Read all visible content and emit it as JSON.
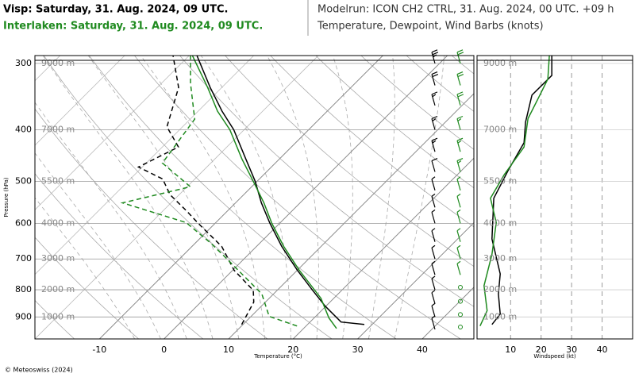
{
  "header": {
    "visp": "Visp: Saturday, 31. Aug. 2024, 09 UTC.",
    "interlaken": "Interlaken: Saturday, 31. Aug. 2024, 09 UTC.",
    "modelrun": "Modelrun: ICON CH2 CTRL, 31. Aug. 2024, 00 UTC. +09 h",
    "subtitle": "Temperature, Dewpoint, Wind Barbs (knots)"
  },
  "footer": "© Meteoswiss (2024)",
  "chart_data": [
    {
      "type": "skewt",
      "xlabel": "Temperature (°C)",
      "ylabel": "Pressure (hPa)",
      "log_y": true,
      "xlim": [
        -20,
        48
      ],
      "ylim": [
        990,
        290
      ],
      "xticks": [
        -10,
        0,
        10,
        20,
        30,
        40
      ],
      "yticks": [
        300,
        400,
        500,
        600,
        700,
        800,
        900
      ],
      "height_labels": [
        "9000 m",
        "7000 m",
        "5500 m",
        "4000 m",
        "3000 m",
        "2000 m",
        "1000 m"
      ],
      "series": [
        {
          "color": "#000000",
          "dash": false,
          "pressure": [
            930,
            920,
            859,
            802,
            735,
            663,
            600,
            549,
            500,
            454,
            400,
            369,
            333,
            290
          ],
          "values": [
            28.8,
            24.8,
            19.9,
            15.5,
            10.0,
            3.9,
            -1.5,
            -6.0,
            -10.3,
            -15.2,
            -21.6,
            -26.3,
            -31.8,
            -38.8
          ]
        },
        {
          "color": "#1f8a1f",
          "dash": false,
          "pressure": [
            946,
            904,
            830,
            735,
            663,
            600,
            549,
            500,
            454,
            400,
            369,
            333,
            290
          ],
          "values": [
            25.1,
            22.3,
            18.0,
            10.3,
            4.2,
            -1.2,
            -5.6,
            -10.6,
            -15.8,
            -22.2,
            -27.0,
            -32.2,
            -39.5
          ]
        },
        {
          "color": "#000000",
          "dash": true,
          "pressure": [
            930,
            844,
            802,
            735,
            663,
            600,
            568,
            530,
            495,
            470,
            431,
            395,
            333,
            290
          ],
          "values": [
            9.8,
            8.2,
            6.3,
            0.2,
            -5.4,
            -12.6,
            -16.4,
            -21.4,
            -25.0,
            -30.6,
            -27.5,
            -32.4,
            -36.7,
            -42.5
          ]
        },
        {
          "color": "#1f8a1f",
          "dash": true,
          "pressure": [
            936,
            898,
            815,
            686,
            652,
            598,
            549,
            512,
            462,
            382,
            327,
            290
          ],
          "values": [
            18.6,
            12.8,
            8.2,
            -4.1,
            -7.8,
            -14.6,
            -27.5,
            -19.5,
            -27.5,
            -29.3,
            -35.5,
            -39.8
          ]
        }
      ],
      "wind_barbs": [
        {
          "color": "#000000",
          "pressure": [
            300,
            330,
            360,
            400,
            440,
            480,
            520,
            560,
            600,
            650,
            700,
            750,
            800,
            850,
            900,
            950
          ],
          "values": [
            23,
            20,
            16,
            15,
            14,
            10,
            6,
            5,
            4,
            4,
            4,
            6,
            7,
            7,
            5,
            4
          ]
        },
        {
          "color": "#1f8a1f",
          "pressure": [
            300,
            330,
            360,
            400,
            440,
            480,
            520,
            560,
            600,
            650,
            700,
            750,
            800,
            850,
            900,
            950
          ],
          "values": [
            22,
            21,
            19,
            16,
            15,
            13,
            7,
            4,
            4,
            5,
            4,
            3,
            2,
            2,
            2,
            0
          ]
        }
      ]
    },
    {
      "type": "line",
      "xlabel": "Windspeed (kt)",
      "log_y": true,
      "xlim": [
        -1,
        50
      ],
      "ylim": [
        990,
        290
      ],
      "xticks": [
        10,
        20,
        30,
        40
      ],
      "yticks": [
        300,
        400,
        500,
        600,
        700,
        800,
        900
      ],
      "height_labels": [
        "9000 m",
        "7000 m",
        "5500 m",
        "4000 m",
        "3000 m",
        "2000 m",
        "1000 m"
      ],
      "series": [
        {
          "color": "#000000",
          "pressure": [
            930,
            889,
            815,
            747,
            642,
            538,
            477,
            423,
            387,
            344,
            316,
            290
          ],
          "values": [
            3.9,
            6.6,
            6.0,
            6.6,
            3.9,
            4.5,
            9.2,
            14.4,
            14.9,
            17.0,
            23.5,
            23.5
          ]
        },
        {
          "color": "#1f8a1f",
          "pressure": [
            936,
            876,
            786,
            686,
            598,
            538,
            486,
            431,
            381,
            344,
            321,
            290
          ],
          "values": [
            0.0,
            2.3,
            1.3,
            3.9,
            5.3,
            3.4,
            7.9,
            14.4,
            15.7,
            19.6,
            22.2,
            22.7
          ]
        }
      ]
    }
  ]
}
